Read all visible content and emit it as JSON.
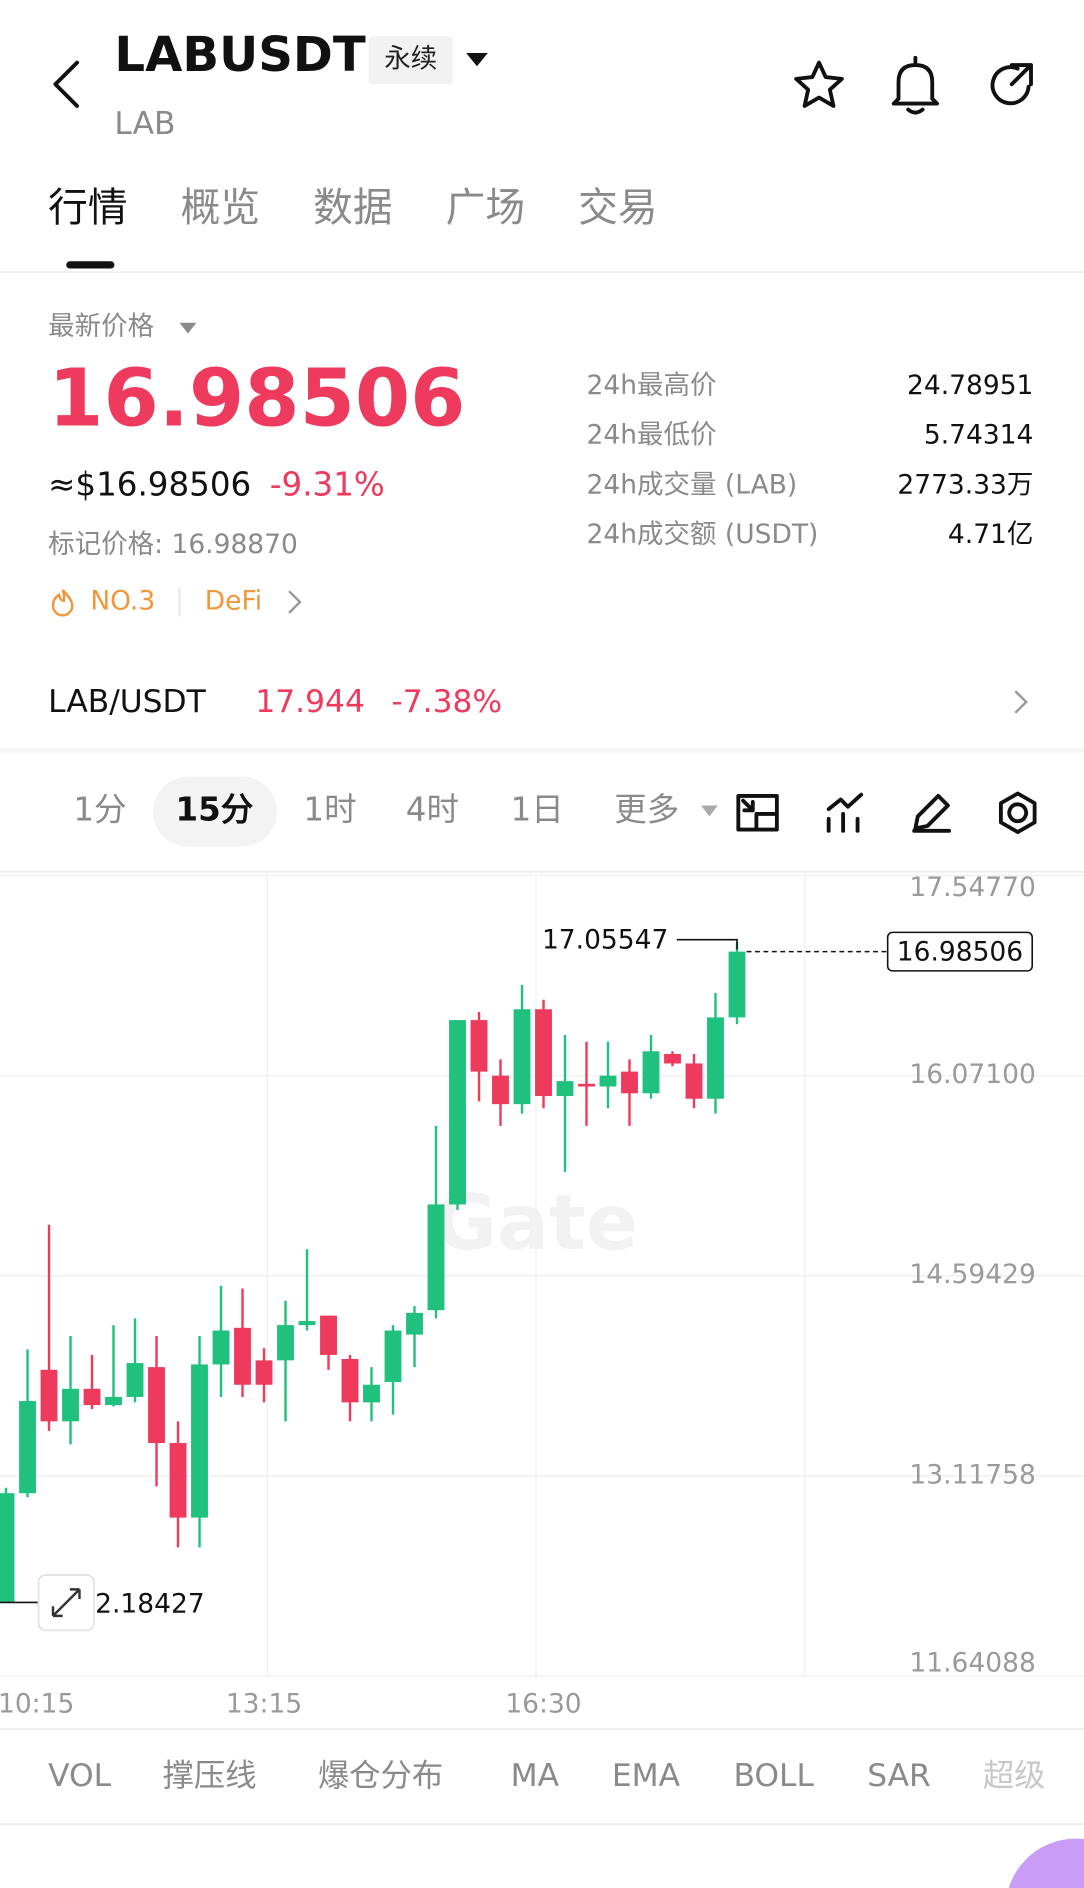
{
  "header": {
    "title": "LABUSDT",
    "tag": "永续",
    "subtitle": "LAB"
  },
  "tabs": [
    "行情",
    "概览",
    "数据",
    "广场",
    "交易"
  ],
  "price": {
    "label": "最新价格",
    "last": "16.98506",
    "usd": "≈$16.98506",
    "change": "-9.31%",
    "mark": "标记价格: 16.98870",
    "rank": "NO.3",
    "sector": "DeFi"
  },
  "stats": [
    {
      "label": "24h最高价",
      "value": "24.78951"
    },
    {
      "label": "24h最低价",
      "value": "5.74314"
    },
    {
      "label": "24h成交量 (LAB)",
      "value": "2773.33万"
    },
    {
      "label": "24h成交额 (USDT)",
      "value": "4.71亿"
    }
  ],
  "pair": {
    "name": "LAB/USDT",
    "price": "17.944",
    "change": "-7.38%"
  },
  "intervals": [
    "1分",
    "15分",
    "1时",
    "4时",
    "1日",
    "更多"
  ],
  "indicators": [
    "VOL",
    "撑压线",
    "爆仓分布",
    "MA",
    "EMA",
    "BOLL",
    "SAR",
    "超级"
  ],
  "chart_data": {
    "type": "candlestick",
    "watermark": "Gate",
    "x": [
      "10:15",
      null,
      null,
      null,
      null,
      null,
      null,
      null,
      null,
      null,
      null,
      null,
      "13:15",
      null,
      null,
      null,
      null,
      null,
      null,
      null,
      null,
      null,
      null,
      null,
      null,
      "16:30",
      null,
      null,
      null,
      null,
      null,
      null,
      null,
      null,
      null
    ],
    "open": [
      12.19,
      12.99,
      13.9,
      13.52,
      13.76,
      13.64,
      13.7,
      13.92,
      13.36,
      12.81,
      13.94,
      14.21,
      13.97,
      13.97,
      14.23,
      14.3,
      13.98,
      13.66,
      13.81,
      14.16,
      14.34,
      15.12,
      16.48,
      16.07,
      15.86,
      16.56,
      15.92,
      16.01,
      15.99,
      16.1,
      15.94,
      16.23,
      16.16,
      15.9,
      16.5
    ],
    "high": [
      13.03,
      14.05,
      14.97,
      14.15,
      14.01,
      14.23,
      14.28,
      14.15,
      13.52,
      14.15,
      14.52,
      14.5,
      14.06,
      14.41,
      14.79,
      14.3,
      14.01,
      13.92,
      14.23,
      14.37,
      15.7,
      16.48,
      16.54,
      16.19,
      16.74,
      16.63,
      16.37,
      16.32,
      16.32,
      16.19,
      16.37,
      16.25,
      16.23,
      16.68,
      17.05547
    ],
    "low": [
      12.18427,
      12.96,
      13.45,
      13.35,
      13.61,
      13.63,
      13.66,
      13.04,
      12.59,
      12.59,
      13.7,
      13.7,
      13.66,
      13.52,
      14.19,
      13.9,
      13.52,
      13.52,
      13.57,
      13.92,
      14.28,
      15.08,
      15.88,
      15.7,
      15.79,
      15.83,
      15.36,
      15.7,
      15.83,
      15.7,
      15.9,
      16.14,
      15.83,
      15.79,
      16.45
    ],
    "close": [
      12.99,
      13.67,
      13.52,
      13.76,
      13.64,
      13.7,
      13.95,
      13.36,
      12.81,
      13.94,
      14.19,
      13.79,
      13.79,
      14.23,
      14.26,
      14.01,
      13.66,
      13.79,
      14.19,
      14.32,
      15.12,
      16.48,
      16.1,
      15.86,
      16.56,
      15.92,
      16.03,
      15.99,
      16.07,
      15.94,
      16.25,
      16.16,
      15.9,
      16.5,
      16.98506
    ],
    "up_color": "#20c07f",
    "down_color": "#ee3a5d",
    "ylim": [
      11.64088,
      17.5477
    ],
    "yticks": [
      {
        "value": 17.5477,
        "label": "17.54770"
      },
      {
        "value": 16.071,
        "label": "16.07100"
      },
      14.59429,
      13.11758,
      11.64088
    ],
    "grid": true
  }
}
